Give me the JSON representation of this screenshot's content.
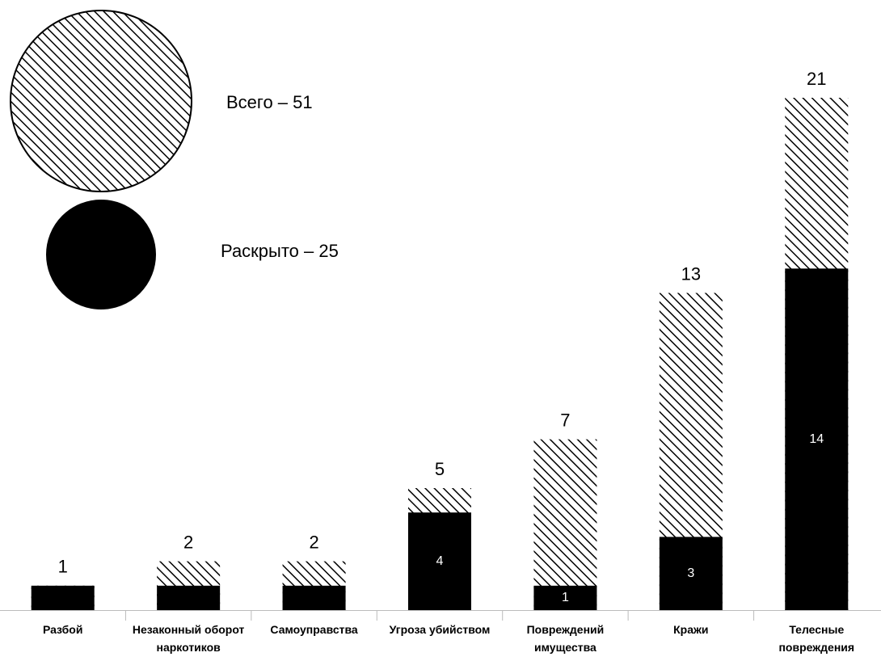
{
  "chart_data": {
    "type": "overlay-bar",
    "categories": [
      "Разбой",
      "Незаконный оборот наркотиков",
      "Самоуправства",
      "Угроза убийством",
      "Повреждений имущества",
      "Кражи",
      "Телесные повреждения"
    ],
    "series": [
      {
        "name": "Всего – 51",
        "color": "#000000",
        "pattern": "hatch",
        "values": [
          1,
          2,
          2,
          5,
          7,
          13,
          21
        ],
        "show_labels": [
          true,
          true,
          true,
          true,
          true,
          true,
          true
        ]
      },
      {
        "name": "Раскрыто – 25",
        "color": "#000000",
        "pattern": "solid",
        "values": [
          1,
          1,
          1,
          4,
          1,
          3,
          14
        ],
        "show_labels": [
          false,
          false,
          false,
          true,
          true,
          true,
          true
        ]
      }
    ],
    "ylim": [
      0,
      21
    ]
  }
}
